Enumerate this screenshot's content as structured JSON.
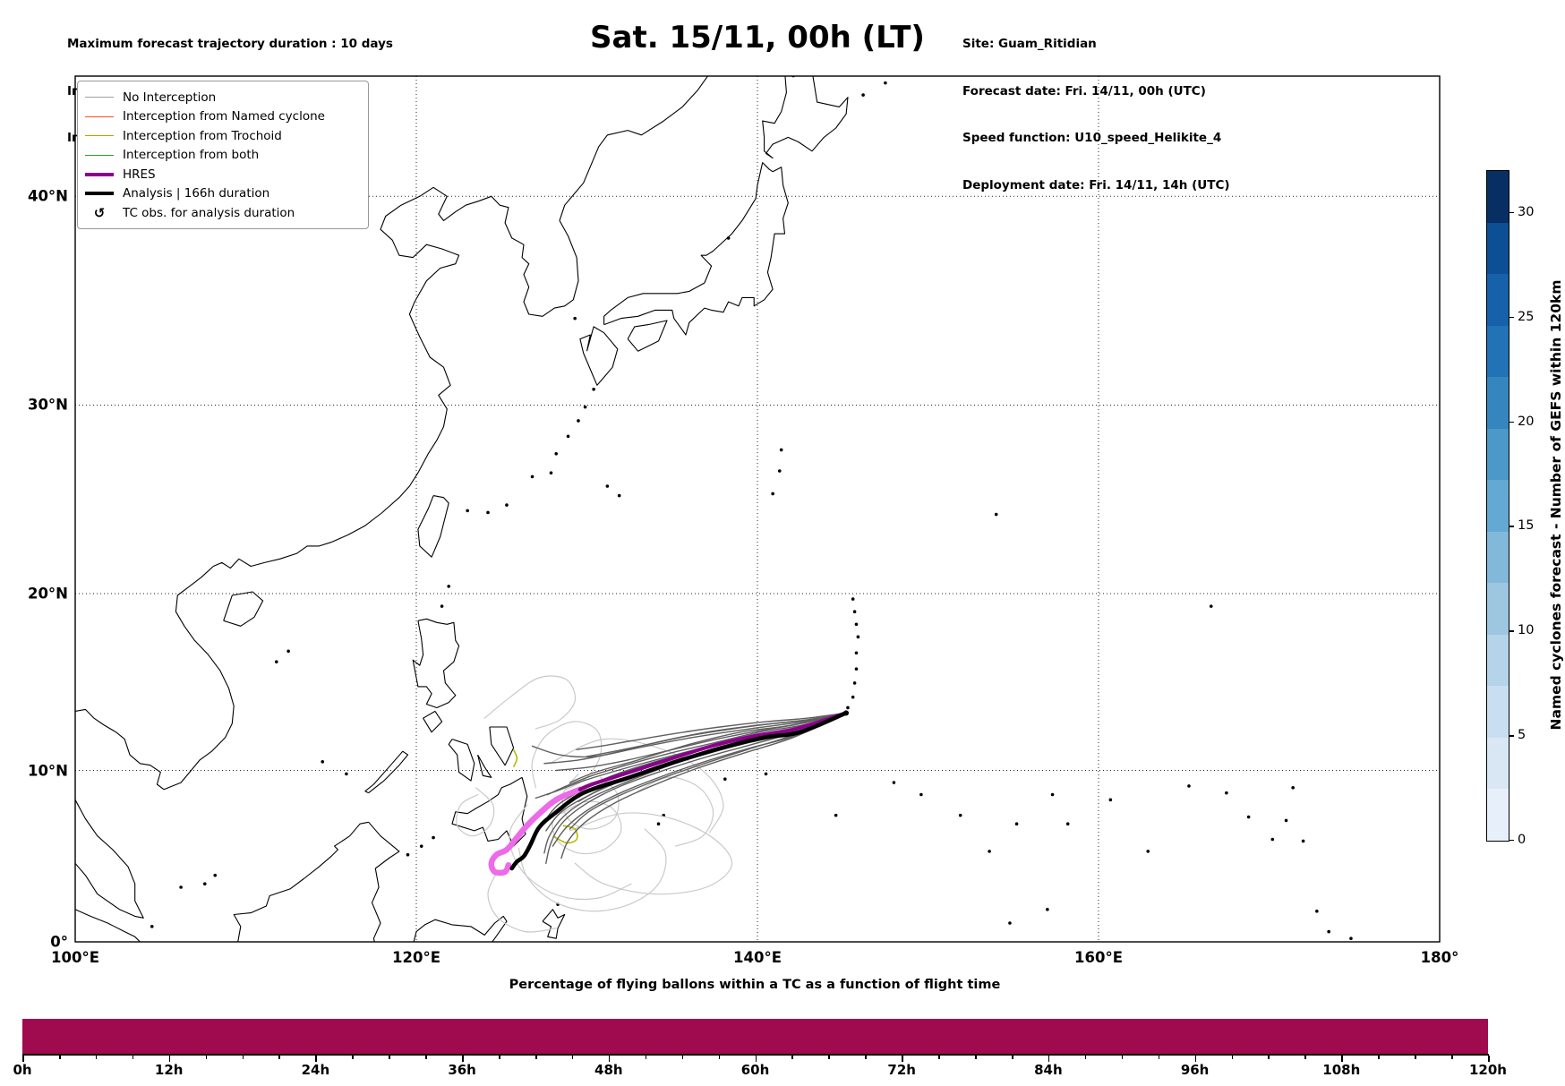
{
  "header": {
    "left": [
      "Maximum forecast trajectory duration : 10 days",
      "Intercept distance: 300km",
      "Intercept RW2: 12km/h2"
    ],
    "title": "Sat. 15/11, 00h (LT)",
    "right": [
      "Site: Guam_Ritidian",
      "Forecast date: Fri. 14/11, 00h (UTC)",
      "Speed function: U10_speed_Helikite_4",
      "Deployment date: Fri. 14/11, 14h (UTC)"
    ]
  },
  "legend": {
    "items": [
      {
        "label": "No Interception",
        "color": "#a0a0a0",
        "width": 1.6
      },
      {
        "label": "Interception from Named cyclone",
        "color": "#ff4f20",
        "width": 1.6
      },
      {
        "label": "Interception from Trochoid",
        "color": "#a8a800",
        "width": 1.6
      },
      {
        "label": "Interception from both",
        "color": "#2e9e2e",
        "width": 1.6
      },
      {
        "label": "HRES",
        "color": "#8b008b",
        "width": 4.5
      },
      {
        "label": "Analysis | 166h duration",
        "color": "#000000",
        "width": 4.5
      },
      {
        "label": "TC obs. for analysis duration",
        "marker": "↺",
        "color": "#000000"
      }
    ]
  },
  "map": {
    "x_ticks": [
      {
        "label": "100°E",
        "lon": 100
      },
      {
        "label": "120°E",
        "lon": 120
      },
      {
        "label": "140°E",
        "lon": 140
      },
      {
        "label": "160°E",
        "lon": 160
      },
      {
        "label": "180°",
        "lon": 180
      }
    ],
    "y_ticks": [
      {
        "label": "0°",
        "lat": 0
      },
      {
        "label": "10°N",
        "lat": 10
      },
      {
        "label": "20°N",
        "lat": 20
      },
      {
        "label": "30°N",
        "lat": 30
      },
      {
        "label": "40°N",
        "lat": 40
      }
    ]
  },
  "colorbar": {
    "label": "Named cyclones forecast - Number of GEFS within 120km",
    "ticks": [
      0,
      5,
      10,
      15,
      20,
      25,
      30
    ],
    "vmin": 0,
    "vmax": 32,
    "colors_bottom_to_top": [
      "#e7f0fa",
      "#d9e7f5",
      "#cadef1",
      "#b5d4ea",
      "#9dc6e0",
      "#82b9da",
      "#64a9d3",
      "#4b98c9",
      "#3585bf",
      "#2272b6",
      "#1661a9",
      "#0c4f94",
      "#082f63"
    ]
  },
  "chart_data": [
    {
      "type": "map-trajectories",
      "projection": "Mercator",
      "extent": {
        "lon": [
          100,
          180
        ],
        "lat": [
          0,
          45.3
        ]
      },
      "site": {
        "name": "Guam_Ritidian",
        "lon": 145.2,
        "lat": 13.3
      },
      "colors": {
        "no_interception_dark": "#5f5f5f",
        "no_interception_light": "#c9c9c9",
        "trochoid": "#b8b800",
        "hres": "#8b008b",
        "analysis": "#000000",
        "tc_obs": "#ee6ae8"
      },
      "analysis_track": [
        [
          145.2,
          13.3
        ],
        [
          142.5,
          12.2
        ],
        [
          140.4,
          11.9
        ],
        [
          137.9,
          11.3
        ],
        [
          135.2,
          10.5
        ],
        [
          132.5,
          9.6
        ],
        [
          129.8,
          8.7
        ],
        [
          128.1,
          7.5
        ],
        [
          127.2,
          6.7
        ],
        [
          126.7,
          5.7
        ],
        [
          126.3,
          5.0
        ],
        [
          125.9,
          4.7
        ],
        [
          125.6,
          4.3
        ]
      ],
      "hres_track": [
        [
          145.2,
          13.3
        ],
        [
          142.3,
          12.4
        ],
        [
          139.9,
          12.0
        ],
        [
          137.3,
          11.4
        ],
        [
          134.7,
          10.6
        ],
        [
          132.2,
          9.8
        ],
        [
          130.3,
          9.2
        ],
        [
          129.6,
          8.9
        ]
      ],
      "tc_obs_track": [
        [
          129.6,
          8.9
        ],
        [
          128.2,
          8.3
        ],
        [
          127.1,
          7.4
        ],
        [
          126.4,
          6.7
        ],
        [
          125.9,
          6.1
        ],
        [
          125.3,
          5.4
        ],
        [
          124.7,
          5.1
        ],
        [
          124.4,
          4.6
        ],
        [
          124.6,
          4.1
        ],
        [
          125.2,
          4.1
        ],
        [
          125.4,
          4.5
        ]
      ],
      "ensemble_dark_members": [
        [
          [
            145.2,
            13.3
          ],
          [
            142.0,
            12.6
          ],
          [
            139.0,
            12.2
          ],
          [
            136.0,
            11.5
          ],
          [
            133.0,
            10.6
          ],
          [
            130.5,
            9.9
          ],
          [
            129.0,
            9.3
          ]
        ],
        [
          [
            145.2,
            13.3
          ],
          [
            142.3,
            12.2
          ],
          [
            139.5,
            11.6
          ],
          [
            136.5,
            10.8
          ],
          [
            133.5,
            9.9
          ],
          [
            131.0,
            9.0
          ],
          [
            129.5,
            8.2
          ]
        ],
        [
          [
            145.2,
            13.3
          ],
          [
            142.8,
            12.9
          ],
          [
            140.0,
            12.6
          ],
          [
            137.0,
            12.2
          ],
          [
            134.0,
            11.6
          ],
          [
            131.5,
            11.0
          ],
          [
            129.5,
            10.6
          ],
          [
            127.5,
            10.4
          ]
        ],
        [
          [
            145.2,
            13.3
          ],
          [
            142.5,
            12.4
          ],
          [
            139.8,
            11.9
          ],
          [
            137.0,
            11.3
          ],
          [
            134.0,
            10.5
          ],
          [
            131.5,
            9.7
          ],
          [
            129.8,
            8.9
          ],
          [
            128.3,
            8.0
          ],
          [
            127.4,
            6.9
          ]
        ],
        [
          [
            145.2,
            13.3
          ],
          [
            142.2,
            12.0
          ],
          [
            139.6,
            11.3
          ],
          [
            137.2,
            10.6
          ],
          [
            134.8,
            9.8
          ],
          [
            132.2,
            8.8
          ],
          [
            130.2,
            7.8
          ],
          [
            128.8,
            6.7
          ],
          [
            128.0,
            5.6
          ]
        ],
        [
          [
            145.2,
            13.3
          ],
          [
            142.6,
            12.7
          ],
          [
            140.2,
            12.3
          ],
          [
            137.6,
            11.8
          ],
          [
            135.0,
            11.2
          ],
          [
            132.4,
            10.6
          ],
          [
            130.2,
            10.2
          ],
          [
            128.2,
            10.0
          ]
        ],
        [
          [
            145.2,
            13.3
          ],
          [
            142.4,
            12.3
          ],
          [
            140.0,
            11.8
          ],
          [
            137.4,
            11.1
          ],
          [
            134.6,
            10.2
          ],
          [
            132.0,
            9.2
          ],
          [
            130.0,
            8.3
          ],
          [
            128.6,
            7.3
          ],
          [
            127.8,
            6.2
          ],
          [
            127.5,
            5.2
          ]
        ],
        [
          [
            145.2,
            13.3
          ],
          [
            142.1,
            11.9
          ],
          [
            139.2,
            11.0
          ],
          [
            136.4,
            10.1
          ],
          [
            133.8,
            9.1
          ],
          [
            131.6,
            8.1
          ],
          [
            129.9,
            7.0
          ],
          [
            128.9,
            5.9
          ],
          [
            128.5,
            4.9
          ]
        ],
        [
          [
            145.2,
            13.3
          ],
          [
            142.7,
            12.8
          ],
          [
            139.6,
            12.4
          ],
          [
            136.2,
            11.9
          ],
          [
            133.0,
            11.3
          ],
          [
            130.4,
            10.8
          ],
          [
            128.4,
            10.9
          ],
          [
            126.8,
            11.4
          ]
        ],
        [
          [
            145.2,
            13.3
          ],
          [
            142.9,
            13.0
          ],
          [
            140.5,
            12.8
          ],
          [
            137.8,
            12.5
          ],
          [
            135.0,
            12.1
          ],
          [
            132.6,
            11.7
          ],
          [
            130.8,
            11.4
          ],
          [
            129.4,
            11.2
          ]
        ],
        [
          [
            145.2,
            13.3
          ],
          [
            142.3,
            12.1
          ],
          [
            139.4,
            11.2
          ],
          [
            136.6,
            10.3
          ],
          [
            134.0,
            9.4
          ],
          [
            131.8,
            8.5
          ],
          [
            130.1,
            7.6
          ],
          [
            129.0,
            6.6
          ]
        ],
        [
          [
            145.2,
            13.3
          ],
          [
            142.5,
            12.5
          ],
          [
            139.9,
            12.0
          ],
          [
            137.2,
            11.4
          ],
          [
            134.4,
            10.7
          ],
          [
            131.8,
            10.0
          ],
          [
            129.8,
            9.4
          ],
          [
            128.2,
            8.8
          ],
          [
            127.0,
            8.4
          ]
        ],
        [
          [
            145.2,
            13.3
          ],
          [
            142.2,
            12.2
          ],
          [
            139.7,
            11.5
          ],
          [
            137.1,
            10.8
          ],
          [
            134.5,
            10.0
          ],
          [
            132.0,
            9.1
          ],
          [
            130.0,
            8.1
          ],
          [
            128.6,
            7.0
          ],
          [
            127.9,
            5.8
          ],
          [
            127.6,
            4.6
          ]
        ],
        [
          [
            145.2,
            13.3
          ],
          [
            142.6,
            12.6
          ],
          [
            140.1,
            12.2
          ],
          [
            137.5,
            11.6
          ],
          [
            134.9,
            11.0
          ],
          [
            132.3,
            10.3
          ],
          [
            130.3,
            9.7
          ],
          [
            128.8,
            9.1
          ],
          [
            127.7,
            8.6
          ]
        ],
        [
          [
            145.2,
            13.3
          ],
          [
            143.0,
            12.9
          ],
          [
            141.0,
            12.7
          ],
          [
            138.6,
            12.4
          ],
          [
            136.0,
            12.0
          ],
          [
            133.6,
            11.5
          ],
          [
            131.6,
            11.1
          ],
          [
            130.0,
            10.8
          ]
        ],
        [
          [
            145.2,
            13.3
          ],
          [
            142.4,
            12.35
          ],
          [
            139.6,
            11.7
          ],
          [
            136.8,
            11.0
          ],
          [
            134.2,
            10.2
          ],
          [
            131.9,
            9.35
          ],
          [
            130.0,
            8.5
          ],
          [
            128.5,
            7.6
          ],
          [
            127.6,
            6.5
          ]
        ]
      ],
      "ensemble_light_members": [
        [
          [
            127.0,
            9.0
          ],
          [
            126.8,
            10.5
          ],
          [
            127.6,
            12.0
          ],
          [
            129.2,
            12.8
          ],
          [
            130.6,
            12.3
          ],
          [
            130.8,
            10.9
          ],
          [
            130.0,
            9.6
          ],
          [
            128.8,
            8.9
          ]
        ],
        [
          [
            128.5,
            7.5
          ],
          [
            130.0,
            8.2
          ],
          [
            131.5,
            7.8
          ],
          [
            132.0,
            6.5
          ],
          [
            131.0,
            5.4
          ],
          [
            129.5,
            5.2
          ],
          [
            128.3,
            5.9
          ],
          [
            128.0,
            7.0
          ],
          [
            128.8,
            7.8
          ]
        ],
        [
          [
            129.0,
            6.5
          ],
          [
            132.0,
            7.5
          ],
          [
            135.0,
            7.2
          ],
          [
            137.5,
            6.0
          ],
          [
            138.5,
            4.5
          ],
          [
            137.0,
            3.2
          ],
          [
            134.0,
            2.8
          ],
          [
            131.0,
            3.4
          ],
          [
            129.3,
            4.6
          ]
        ],
        [
          [
            126.5,
            8.0
          ],
          [
            125.5,
            6.5
          ],
          [
            125.8,
            4.8
          ],
          [
            127.0,
            3.4
          ],
          [
            128.8,
            2.6
          ],
          [
            130.8,
            2.6
          ],
          [
            132.6,
            3.4
          ]
        ],
        [
          [
            123.5,
            9.0
          ],
          [
            124.5,
            8.0
          ],
          [
            124.3,
            6.8
          ],
          [
            123.3,
            6.2
          ],
          [
            122.4,
            6.8
          ],
          [
            122.6,
            8.0
          ],
          [
            123.6,
            8.6
          ]
        ],
        [
          [
            128.0,
            10.5
          ],
          [
            131.0,
            11.8
          ],
          [
            134.5,
            11.2
          ],
          [
            137.0,
            9.8
          ],
          [
            138.0,
            8.0
          ],
          [
            137.2,
            6.4
          ]
        ],
        [
          [
            126.0,
            5.5
          ],
          [
            126.5,
            3.8
          ],
          [
            128.0,
            2.4
          ],
          [
            130.2,
            1.8
          ],
          [
            132.5,
            2.2
          ],
          [
            134.2,
            3.4
          ],
          [
            134.6,
            5.2
          ],
          [
            133.4,
            6.6
          ]
        ],
        [
          [
            124.8,
            4.2
          ],
          [
            124.2,
            2.8
          ],
          [
            124.8,
            1.4
          ],
          [
            126.4,
            0.6
          ],
          [
            128.2,
            0.8
          ]
        ],
        [
          [
            129.5,
            9.8
          ],
          [
            128.6,
            8.6
          ],
          [
            128.9,
            7.2
          ],
          [
            130.2,
            6.6
          ],
          [
            131.6,
            7.2
          ],
          [
            131.8,
            8.6
          ],
          [
            130.8,
            9.6
          ]
        ],
        [
          [
            133.0,
            8.8
          ],
          [
            134.8,
            9.6
          ],
          [
            136.6,
            9.0
          ],
          [
            137.4,
            7.6
          ],
          [
            136.8,
            6.2
          ],
          [
            135.2,
            5.6
          ]
        ],
        [
          [
            124.0,
            13.0
          ],
          [
            125.5,
            14.2
          ],
          [
            127.2,
            15.3
          ],
          [
            128.8,
            15.2
          ],
          [
            129.3,
            14.0
          ],
          [
            128.4,
            12.9
          ],
          [
            127.0,
            12.4
          ]
        ]
      ],
      "trochoid_segments": [
        [
          [
            128.0,
            6.2
          ],
          [
            128.8,
            5.8
          ],
          [
            129.4,
            6.0
          ],
          [
            129.3,
            6.6
          ],
          [
            128.6,
            6.8
          ]
        ],
        [
          [
            125.7,
            11.2
          ],
          [
            125.9,
            10.7
          ],
          [
            125.7,
            10.2
          ]
        ]
      ]
    },
    {
      "type": "bar",
      "title": "Percentage of flying ballons within a TC as a function of flight time",
      "x_tick_labels": [
        "0h",
        "12h",
        "24h",
        "36h",
        "48h",
        "60h",
        "72h",
        "84h",
        "96h",
        "108h",
        "120h"
      ],
      "x_range_hours": [
        0,
        120
      ],
      "major_tick_hours": 12,
      "minor_tick_hours": 3,
      "value_percent_constant": 100,
      "bar_color": "#a00a4e"
    }
  ]
}
